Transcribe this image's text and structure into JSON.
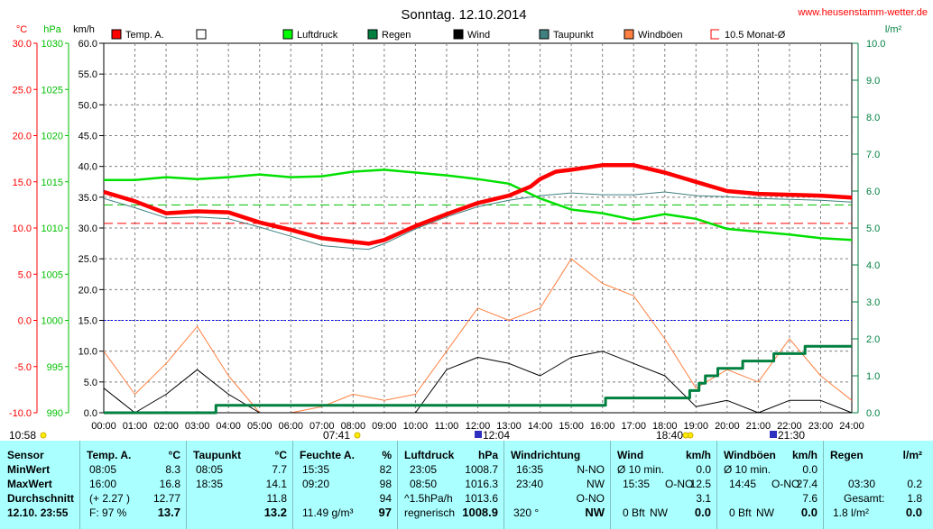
{
  "header": {
    "title": "Sonntag. 12.10.2014",
    "site": "www.heusenstamm-wetter.de"
  },
  "units": {
    "temp": "°C",
    "pressure": "hPa",
    "wind": "km/h",
    "rain": "l/m²"
  },
  "legend": [
    {
      "label": "Temp. A.",
      "color": "#ff0000",
      "style": "box"
    },
    {
      "label": "",
      "color": "#ffffff",
      "style": "box"
    },
    {
      "label": "Luftdruck",
      "color": "#00ff00",
      "style": "box"
    },
    {
      "label": "Regen",
      "color": "#008040",
      "style": "box"
    },
    {
      "label": "Wind",
      "color": "#000000",
      "style": "box"
    },
    {
      "label": "Taupunkt",
      "color": "#408080",
      "style": "box"
    },
    {
      "label": "Windböen",
      "color": "#ff8040",
      "style": "box"
    },
    {
      "label": "10.5 Monat-Ø",
      "color": "#ff0000",
      "style": "bracket"
    }
  ],
  "events": {
    "first_label": "10:58",
    "sunrise_label": "07:41",
    "moonset_label": "12:04",
    "sunset_label": "18:40",
    "sun_19_label": "",
    "moonrise_label": "21:30"
  },
  "colors": {
    "temp": "#ff0000",
    "pressure": "#00e000",
    "rain": "#008040",
    "wind": "#000000",
    "dew": "#408080",
    "gust": "#ff8040",
    "avg": "#ff0000",
    "grid": "#808080",
    "panel": "#aaffff"
  },
  "chart_data": {
    "type": "line",
    "title": "Sonntag. 12.10.2014",
    "x_labels": [
      "00:00",
      "01:00",
      "02:00",
      "03:00",
      "04:00",
      "05:00",
      "06:00",
      "07:00",
      "08:00",
      "09:00",
      "10:00",
      "11:00",
      "12:00",
      "13:00",
      "14:00",
      "15:00",
      "16:00",
      "17:00",
      "18:00",
      "19:00",
      "20:00",
      "21:00",
      "22:00",
      "23:00",
      "24:00"
    ],
    "axes": {
      "temp": {
        "label": "°C",
        "min": -10,
        "max": 30,
        "ticks": [
          "30.0",
          "25.0",
          "20.0",
          "15.0",
          "10.0",
          "5.0",
          "0.0",
          "-5.0",
          "-10.0"
        ]
      },
      "pressure": {
        "label": "hPa",
        "min": 990,
        "max": 1030,
        "ticks": [
          "1030",
          "1025",
          "1020",
          "1015",
          "1010",
          "1005",
          "1000",
          "995",
          "990"
        ]
      },
      "wind": {
        "label": "km/h",
        "min": 0,
        "max": 60,
        "ticks": [
          "60.0",
          "55.0",
          "50.0",
          "45.0",
          "40.0",
          "35.0",
          "30.0",
          "25.0",
          "20.0",
          "15.0",
          "10.0",
          "5.0",
          "0.0"
        ]
      },
      "rain": {
        "label": "l/m²",
        "min": 0,
        "max": 10,
        "ticks": [
          "10.0",
          "9.0",
          "8.0",
          "7.0",
          "6.0",
          "5.0",
          "4.0",
          "3.0",
          "2.0",
          "1.0",
          "0.0"
        ]
      }
    },
    "reference_lines": [
      {
        "name": "10.5 Monat-Ø",
        "axis": "temp",
        "value": 10.5
      },
      {
        "name": "Luftdruck Monat-Ø",
        "axis": "pressure",
        "value": 1012.5
      },
      {
        "name": "0 °C",
        "axis": "temp",
        "value": 0
      }
    ],
    "series": [
      {
        "name": "Temp. A.",
        "axis": "temp",
        "x": [
          0,
          1,
          2,
          3,
          4,
          5,
          6,
          7,
          8,
          8.5,
          9,
          10,
          11,
          12,
          13,
          13.7,
          14,
          14.5,
          15,
          16,
          17,
          18,
          19,
          20,
          21,
          22,
          23,
          24
        ],
        "y": [
          13.9,
          12.9,
          11.6,
          11.8,
          11.7,
          10.6,
          9.8,
          8.9,
          8.5,
          8.3,
          8.7,
          10.2,
          11.5,
          12.7,
          13.5,
          14.5,
          15.3,
          16.1,
          16.3,
          16.8,
          16.8,
          16.0,
          15.0,
          14.0,
          13.7,
          13.6,
          13.5,
          13.3
        ]
      },
      {
        "name": "Taupunkt",
        "axis": "temp",
        "x": [
          0,
          1,
          2,
          3,
          4,
          5,
          6,
          7,
          8,
          8.5,
          9,
          10,
          11,
          12,
          13,
          14,
          15,
          16,
          17,
          18,
          19,
          20,
          21,
          22,
          23,
          24
        ],
        "y": [
          13.2,
          12.2,
          11.1,
          11.2,
          11.0,
          10.1,
          9.1,
          8.1,
          7.8,
          7.7,
          8.3,
          9.9,
          11.2,
          12.3,
          13.0,
          13.5,
          13.8,
          13.6,
          13.6,
          13.9,
          13.5,
          13.4,
          13.2,
          13.1,
          13.0,
          12.8
        ]
      },
      {
        "name": "Luftdruck",
        "axis": "pressure",
        "x": [
          0,
          1,
          2,
          3,
          4,
          5,
          6,
          7,
          8,
          9,
          10,
          11,
          12,
          13,
          14,
          15,
          16,
          17,
          18,
          19,
          20,
          21,
          22,
          23,
          24
        ],
        "y": [
          1015.2,
          1015.2,
          1015.5,
          1015.3,
          1015.5,
          1015.8,
          1015.5,
          1015.6,
          1016.1,
          1016.3,
          1016.0,
          1015.7,
          1015.3,
          1014.8,
          1013.2,
          1012.0,
          1011.6,
          1010.9,
          1011.5,
          1011.0,
          1009.9,
          1009.6,
          1009.3,
          1008.9,
          1008.7
        ]
      },
      {
        "name": "Wind",
        "axis": "wind",
        "x": [
          0,
          1,
          2,
          3,
          4,
          5,
          6,
          7,
          8,
          9,
          10,
          11,
          12,
          13,
          14,
          15,
          16,
          17,
          18,
          19,
          20,
          21,
          22,
          23,
          24
        ],
        "y": [
          4,
          0,
          3,
          7,
          3,
          0,
          0,
          0,
          0,
          0,
          0,
          7,
          9,
          8,
          6,
          9,
          10,
          8,
          6,
          1,
          2,
          0,
          2,
          2,
          0
        ]
      },
      {
        "name": "Windböen",
        "axis": "wind",
        "x": [
          0,
          1,
          2,
          3,
          4,
          5,
          6,
          7,
          8,
          9,
          10,
          11,
          12,
          13,
          14,
          15,
          16,
          17,
          18,
          19,
          20,
          21,
          22,
          23,
          24
        ],
        "y": [
          10,
          3,
          8,
          14,
          6,
          0,
          0,
          1,
          3,
          2,
          3,
          10,
          17,
          15,
          17,
          25,
          21,
          19,
          12,
          4,
          7,
          5,
          12,
          6,
          2
        ]
      },
      {
        "name": "Regen",
        "axis": "rain",
        "x": [
          0,
          3.5,
          3.6,
          16,
          16.1,
          18.6,
          18.8,
          19.1,
          19.3,
          19.7,
          20.5,
          21.5,
          22.5,
          24
        ],
        "y": [
          0,
          0,
          0.2,
          0.2,
          0.4,
          0.4,
          0.6,
          0.8,
          1.0,
          1.2,
          1.4,
          1.6,
          1.8,
          1.8
        ]
      }
    ]
  },
  "stats": {
    "row_labels": [
      "Sensor",
      "MinWert",
      "MaxWert",
      "Durchschnitt",
      "12.10. 23:55"
    ],
    "temp": {
      "header": "Temp. A.",
      "unit": "°C",
      "rows": [
        [
          "08:05",
          "8.3"
        ],
        [
          "16:00",
          "16.8"
        ],
        [
          "(+ 2.27 )",
          "12.77"
        ],
        [
          "F: 97 %",
          "13.7"
        ]
      ]
    },
    "dew": {
      "header": "Taupunkt",
      "unit": "°C",
      "rows": [
        [
          "08:05",
          "7.7"
        ],
        [
          "18:35",
          "14.1"
        ],
        [
          "",
          "11.8"
        ],
        [
          "",
          "13.2"
        ]
      ]
    },
    "humidity": {
      "header": "Feuchte A.",
      "unit": "%",
      "rows": [
        [
          "15:35",
          "82"
        ],
        [
          "09:20",
          "98"
        ],
        [
          "",
          "94"
        ],
        [
          "11.49 g/m³",
          "97"
        ]
      ]
    },
    "pressure": {
      "header": "Luftdruck",
      "unit": "hPa",
      "rows": [
        [
          "23:05",
          "1008.7"
        ],
        [
          "08:50",
          "1016.3"
        ],
        [
          "^1.5hPa/h",
          "1013.6"
        ],
        [
          "regnerisch",
          "1008.9"
        ]
      ]
    },
    "winddir": {
      "header": "Windrichtung",
      "unit": "",
      "rows": [
        [
          "16:35",
          "N-NO"
        ],
        [
          "23:40",
          "NW"
        ],
        [
          "",
          "O-NO"
        ],
        [
          "320 °",
          "NW"
        ]
      ]
    },
    "wind": {
      "header": "Wind",
      "unit": "km/h",
      "rows": [
        [
          "Ø 10 min.",
          "",
          "0.0"
        ],
        [
          "15:35",
          "O-NO",
          "12.5"
        ],
        [
          "",
          "",
          "3.1"
        ],
        [
          "0 Bft",
          "NW",
          "0.0"
        ]
      ]
    },
    "gust": {
      "header": "Windböen",
      "unit": "km/h",
      "rows": [
        [
          "Ø 10 min.",
          "",
          "0.0"
        ],
        [
          "14:45",
          "O-NO",
          "27.4"
        ],
        [
          "",
          "",
          "7.6"
        ],
        [
          "0 Bft",
          "NW",
          "0.0"
        ]
      ]
    },
    "rain": {
      "header": "Regen",
      "unit": "l/m²",
      "rows": [
        [
          "03:30",
          "0.2"
        ],
        [
          "Gesamt:",
          "1.8"
        ],
        [
          "1.8 l/m²",
          "0.0"
        ]
      ]
    }
  }
}
